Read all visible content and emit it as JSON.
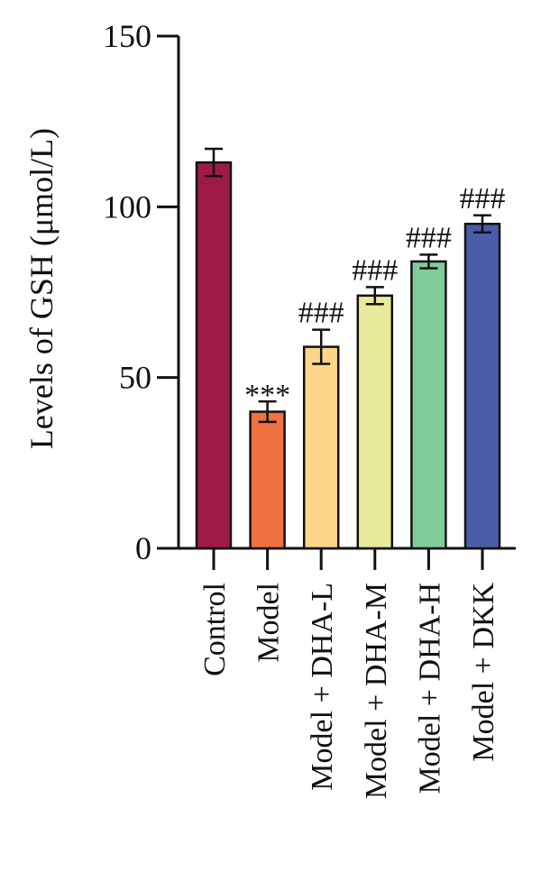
{
  "chart_data": {
    "type": "bar",
    "title": "",
    "xlabel": "",
    "ylabel": "Levels of GSH (μmol/L)",
    "ylim": [
      0,
      150
    ],
    "yticks": [
      "0",
      "50",
      "100",
      "150"
    ],
    "grid": false,
    "categories": [
      "Control",
      "Model",
      "Model + DHA-L",
      "Model + DHA-M",
      "Model + DHA-H",
      "Model + DKK"
    ],
    "values": [
      113,
      40,
      59,
      74,
      84,
      95
    ],
    "errors": [
      4,
      3,
      5,
      2.5,
      2,
      2.5
    ],
    "annotations": [
      "",
      "***",
      "###",
      "###",
      "###",
      "###"
    ],
    "colors": [
      "#9e1a45",
      "#f07040",
      "#fcd589",
      "#e9ea9b",
      "#7fcc9a",
      "#4a5ea8"
    ]
  }
}
